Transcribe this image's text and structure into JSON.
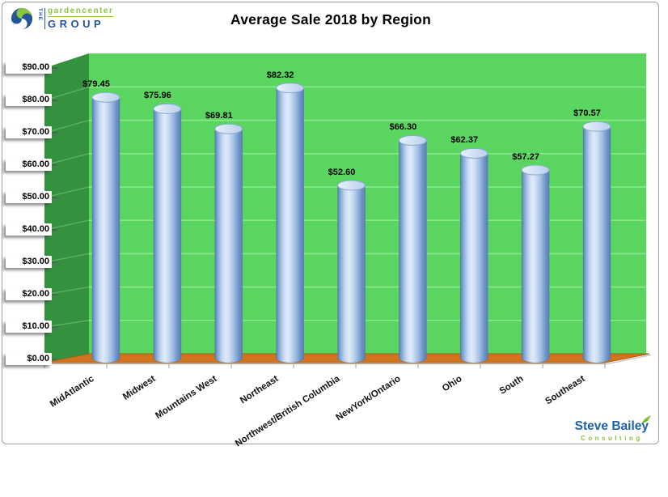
{
  "header": {
    "title": "Average Sale 2018 by Region"
  },
  "branding": {
    "gardencenter": {
      "prefix": "THE",
      "name": "gardencenter",
      "group": "GROUP"
    },
    "steve_bailey": {
      "name": "Steve Bailey",
      "tagline": "Consulting"
    }
  },
  "chart_data": {
    "type": "bar",
    "variant": "3d-cylinder",
    "title": "Average Sale 2018 by Region",
    "categories": [
      "MidAtlantic",
      "Midwest",
      "Mountains West",
      "Northeast",
      "Northwest/British Columbia",
      "NewYork/Ontario",
      "Ohio",
      "South",
      "Southeast"
    ],
    "values": [
      79.45,
      75.96,
      69.81,
      82.32,
      52.6,
      66.3,
      62.37,
      57.27,
      70.57
    ],
    "data_labels": [
      "$79.45",
      "$75.96",
      "$69.81",
      "$82.32",
      "$52.60",
      "$66.30",
      "$62.37",
      "$57.27",
      "$70.57"
    ],
    "y_ticks": [
      "$0.00",
      "$10.00",
      "$20.00",
      "$30.00",
      "$40.00",
      "$50.00",
      "$60.00",
      "$70.00",
      "$80.00",
      "$90.00"
    ],
    "ylim": [
      0,
      90
    ],
    "legend": "none",
    "grid": "on",
    "colors": {
      "wall_back": "#5ad660",
      "wall_side": "#34923e",
      "gridline_back": "#87e887",
      "gridline_side": "#58b763",
      "floor": "#d2731e",
      "floor_edge": "#a55d14",
      "axis": "#9b9b9b",
      "label_box_bg": "#ffffff",
      "bar_gradient": [
        "#587fb4",
        "#82a7d6",
        "#c4d7ef",
        "#e0ebfb",
        "#cddef3",
        "#9fbde3",
        "#6c95c8",
        "#587fb4"
      ],
      "bar_top_gradient": [
        "#e9f1fc",
        "#b9cfeb"
      ],
      "bar_top_stroke": "#87a9d4"
    }
  }
}
